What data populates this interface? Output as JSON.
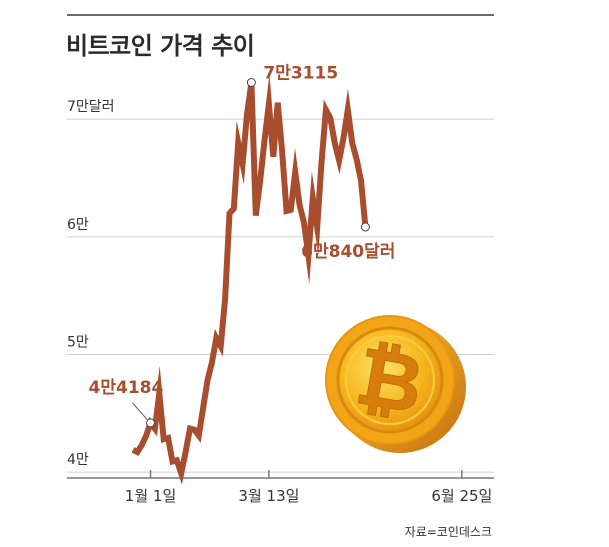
{
  "chart_data": {
    "type": "line",
    "title": "비트코인 가격 추이",
    "source": "자료=코인데스크",
    "y_ticks": [
      {
        "value": 40000,
        "label": "4만"
      },
      {
        "value": 50000,
        "label": "5만"
      },
      {
        "value": 60000,
        "label": "6만"
      },
      {
        "value": 70000,
        "label": "7만달러"
      }
    ],
    "ylim": [
      39500,
      73500
    ],
    "x_ticks": [
      {
        "index": 4,
        "label": "1월 1일"
      },
      {
        "index": 31,
        "label": "3월 13일"
      },
      {
        "index": 75,
        "label": "6월 25일"
      }
    ],
    "xlim": [
      0,
      78
    ],
    "grid": true,
    "colors": {
      "line": "#a84e2f",
      "label": "#a84e2f",
      "grid": "#cfcfcf",
      "axis": "#777777"
    },
    "series": [
      {
        "values": [
          41900,
          41700,
          42300,
          43100,
          44184,
          43700,
          46700,
          42800,
          42900,
          40900,
          41000,
          39900,
          41700,
          43700,
          43600,
          43100,
          45500,
          47800,
          49300,
          51400,
          50700,
          54700,
          62000,
          62400,
          68000,
          66200,
          70400,
          73115,
          61800,
          64800,
          68200,
          71300,
          66800,
          71400,
          67300,
          62200,
          62300,
          65500,
          62700,
          61200,
          58400,
          63300,
          60800,
          66300,
          70800,
          70100,
          68000,
          66500,
          68400,
          70800,
          68000,
          66600,
          64800,
          60840
        ]
      }
    ],
    "annotations": [
      {
        "point_index": 4,
        "label": "4만4184"
      },
      {
        "point_index": 27,
        "label": "7만3115"
      },
      {
        "point_index": 53,
        "label": "6만840달러"
      }
    ]
  },
  "coin": {
    "symbol": "₿",
    "icon": "bitcoin-coin-icon"
  }
}
